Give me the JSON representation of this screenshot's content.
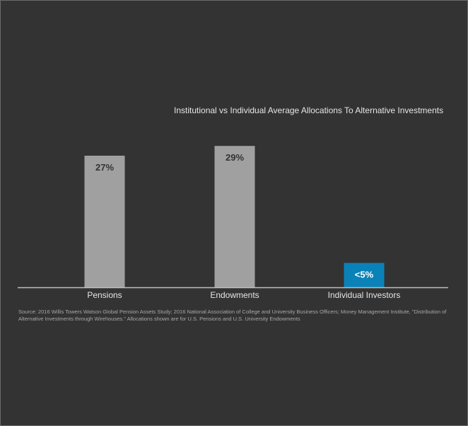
{
  "chart_data": {
    "type": "bar",
    "title": "Institutional vs Individual Average Allocations To Alternative Investments",
    "categories": [
      "Pensions",
      "Endowments",
      "Individual Investors"
    ],
    "values": [
      27,
      29,
      5
    ],
    "value_labels": [
      "27%",
      "29%",
      "<5%"
    ],
    "xlabel": "",
    "ylabel": "",
    "ylim": [
      0,
      35
    ],
    "grid": false,
    "legend": "none",
    "colors": {
      "background": "#333333",
      "institutional_bar": "#a0a0a0",
      "individual_bar": "#0a82b8",
      "axis": "#bdbdbd",
      "text": "#e6e6e6",
      "bar_label_on_gray": "#333333",
      "bar_label_on_blue": "#ffffff"
    }
  },
  "source_note": "Source: 2016 Willis Towers Watson Global Pension Assets Study; 2016 National Association of College and University Business Officers; Money Management Institute, \"Distribution of Alternative Investments through Wirehouses.\" Allocations shown are for U.S. Pensions and U.S. University Endowments"
}
